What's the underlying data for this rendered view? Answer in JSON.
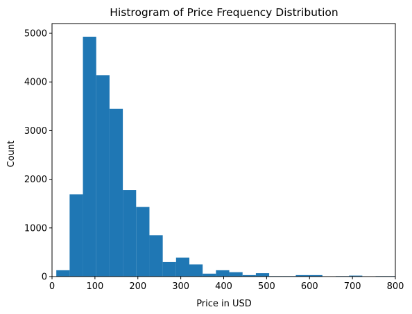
{
  "chart_data": {
    "type": "bar",
    "title": "Histrogram of Price Frequency Distribution",
    "xlabel": "Price in USD",
    "ylabel": "Count",
    "xlim": [
      0,
      800
    ],
    "ylim": [
      0,
      5200
    ],
    "xticks": [
      0,
      100,
      200,
      300,
      400,
      500,
      600,
      700,
      800
    ],
    "yticks": [
      0,
      1000,
      2000,
      3000,
      4000,
      5000
    ],
    "bar_color": "#1f77b4",
    "grid": false,
    "bins": [
      {
        "start": 10,
        "end": 41,
        "count": 130
      },
      {
        "start": 41,
        "end": 72,
        "count": 1690
      },
      {
        "start": 72,
        "end": 103,
        "count": 4930
      },
      {
        "start": 103,
        "end": 134,
        "count": 4140
      },
      {
        "start": 134,
        "end": 165,
        "count": 3450
      },
      {
        "start": 165,
        "end": 196,
        "count": 1780
      },
      {
        "start": 196,
        "end": 227,
        "count": 1430
      },
      {
        "start": 227,
        "end": 258,
        "count": 850
      },
      {
        "start": 258,
        "end": 289,
        "count": 300
      },
      {
        "start": 289,
        "end": 320,
        "count": 390
      },
      {
        "start": 320,
        "end": 351,
        "count": 250
      },
      {
        "start": 351,
        "end": 382,
        "count": 60
      },
      {
        "start": 382,
        "end": 413,
        "count": 130
      },
      {
        "start": 413,
        "end": 444,
        "count": 90
      },
      {
        "start": 444,
        "end": 475,
        "count": 30
      },
      {
        "start": 475,
        "end": 506,
        "count": 70
      },
      {
        "start": 506,
        "end": 537,
        "count": 10
      },
      {
        "start": 537,
        "end": 568,
        "count": 10
      },
      {
        "start": 568,
        "end": 599,
        "count": 30
      },
      {
        "start": 599,
        "end": 630,
        "count": 30
      },
      {
        "start": 630,
        "end": 661,
        "count": 5
      },
      {
        "start": 661,
        "end": 692,
        "count": 10
      },
      {
        "start": 692,
        "end": 723,
        "count": 20
      },
      {
        "start": 723,
        "end": 754,
        "count": 5
      },
      {
        "start": 754,
        "end": 785,
        "count": 10
      },
      {
        "start": 785,
        "end": 816,
        "count": 10
      }
    ]
  }
}
